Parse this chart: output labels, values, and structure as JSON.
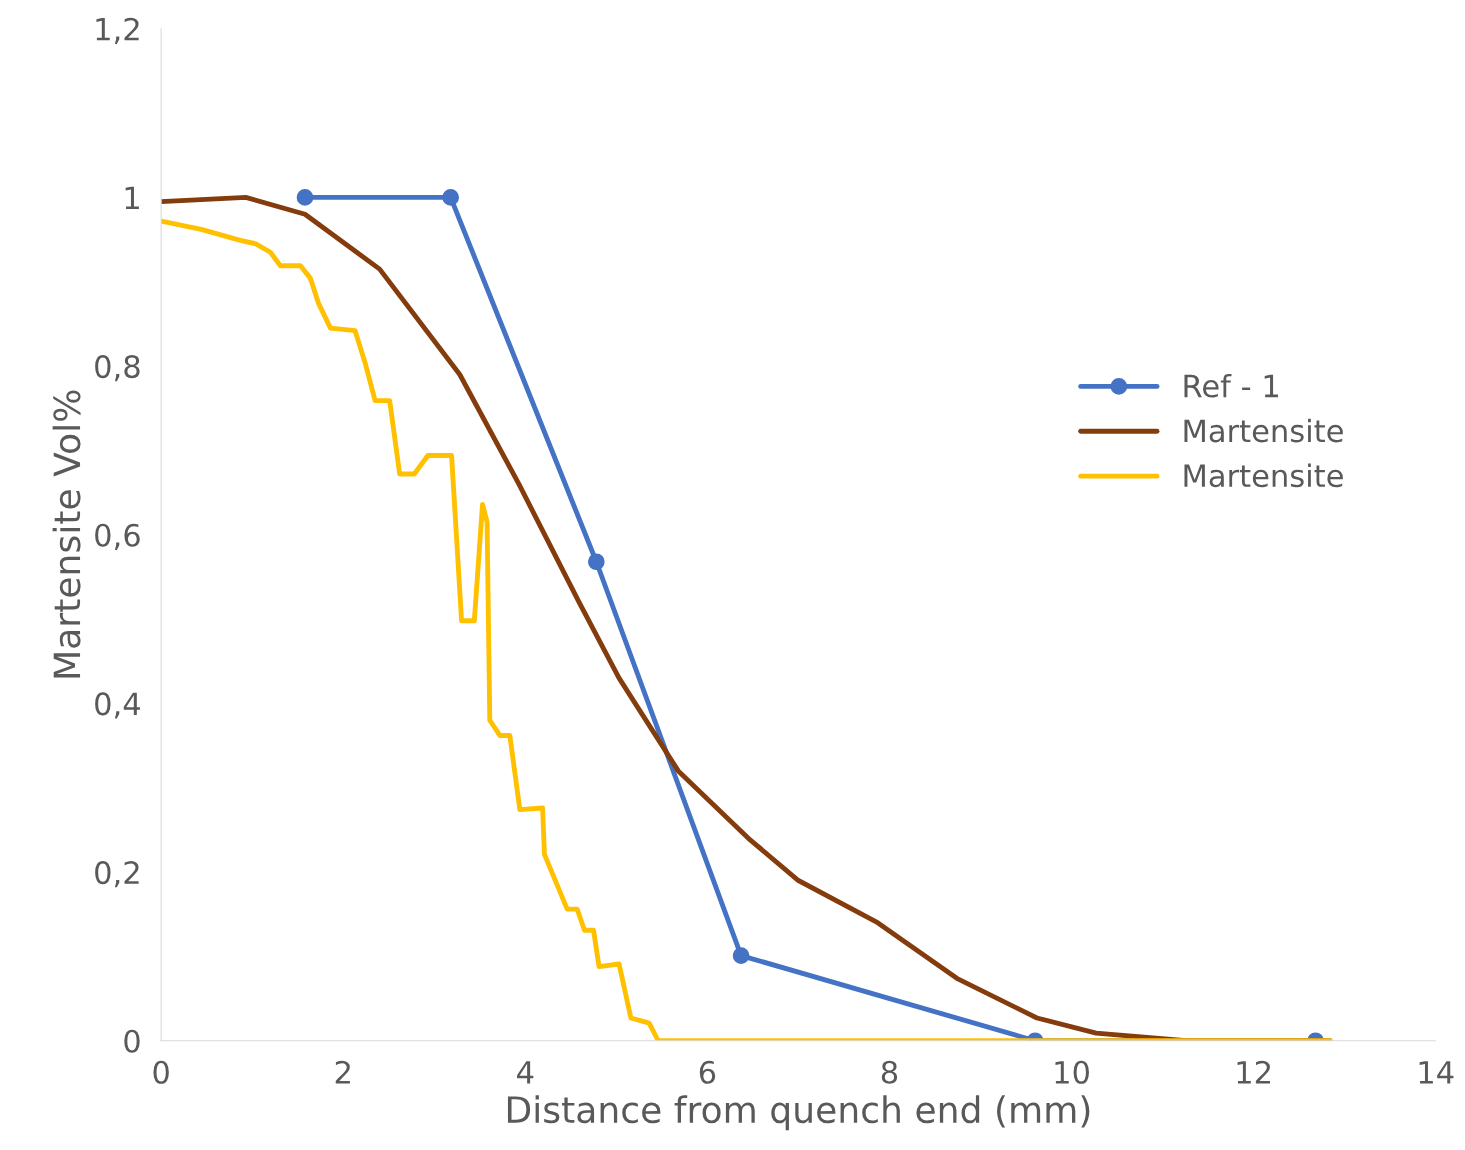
{
  "chart_data": {
    "type": "line",
    "xlabel": "Distance from quench end (mm)",
    "ylabel": "Martensite Vol%",
    "xlim": [
      0,
      14
    ],
    "xticks": [
      0,
      2,
      4,
      6,
      8,
      10,
      12,
      14
    ],
    "ylim": [
      0,
      1.2
    ],
    "yticks": [
      0,
      {
        "value": 0.2,
        "label": "0,2"
      },
      {
        "value": 0.4,
        "label": "0,4"
      },
      {
        "value": 0.6,
        "label": "0,6"
      },
      {
        "value": 0.8,
        "label": "0,8"
      },
      1,
      {
        "value": 1.2,
        "label": "1,2"
      }
    ],
    "grid": false,
    "legend": "right",
    "series": [
      {
        "name": "Ref - 1",
        "color": "#4472c4",
        "marker": "circle",
        "x": [
          1.58,
          3.18,
          4.78,
          6.37,
          9.6,
          12.68
        ],
        "values": [
          1.0,
          1.0,
          0.568,
          0.101,
          0,
          0
        ]
      },
      {
        "name": "Martensite",
        "color": "#843c0c",
        "marker": "none",
        "x": [
          0,
          0.93,
          1.58,
          2.4,
          3.28,
          3.93,
          4.59,
          5.03,
          5.68,
          6.45,
          7.0,
          7.87,
          8.74,
          9.62,
          10.27,
          11.26,
          12.84
        ],
        "values": [
          0.995,
          1.0,
          0.98,
          0.915,
          0.79,
          0.66,
          0.52,
          0.43,
          0.32,
          0.24,
          0.19,
          0.14,
          0.074,
          0.027,
          0.009,
          0,
          0
        ]
      },
      {
        "name": "Martensite",
        "color": "#ffc000",
        "marker": "none",
        "x": [
          0,
          0.44,
          0.87,
          1.04,
          1.2,
          1.31,
          1.53,
          1.64,
          1.73,
          1.86,
          2.13,
          2.24,
          2.35,
          2.51,
          2.62,
          2.78,
          2.93,
          3.19,
          3.3,
          3.44,
          3.53,
          3.58,
          3.61,
          3.72,
          3.83,
          3.94,
          4.19,
          4.21,
          4.46,
          4.57,
          4.65,
          4.75,
          4.81,
          5.03,
          5.16,
          5.36,
          5.46,
          12.84
        ],
        "values": [
          0.972,
          0.962,
          0.949,
          0.945,
          0.935,
          0.919,
          0.919,
          0.904,
          0.874,
          0.845,
          0.842,
          0.804,
          0.759,
          0.759,
          0.672,
          0.672,
          0.694,
          0.694,
          0.498,
          0.498,
          0.636,
          0.615,
          0.38,
          0.362,
          0.362,
          0.274,
          0.276,
          0.221,
          0.156,
          0.156,
          0.131,
          0.131,
          0.088,
          0.091,
          0.027,
          0.021,
          0,
          0
        ]
      }
    ]
  }
}
